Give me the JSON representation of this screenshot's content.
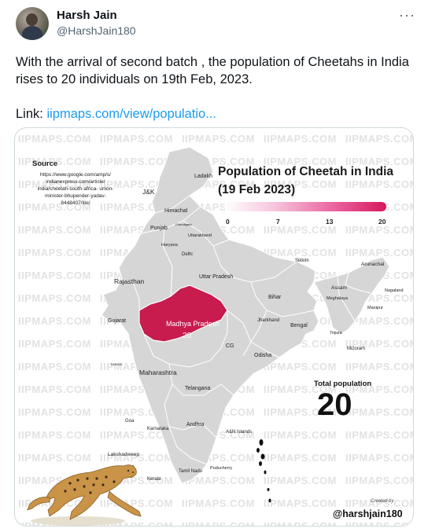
{
  "tweet": {
    "display_name": "Harsh Jain",
    "handle": "@HarshJain180",
    "more_icon": "more-horizontal-icon",
    "text_line1": "With the arrival of second batch , the population of Cheetahs in India",
    "text_line2": "rises to 20 individuals on 19th Feb, 2023.",
    "link_prefix": "Link: ",
    "link_text": "iipmaps.com/view/populatio..."
  },
  "media": {
    "watermark": "IIPMAPS.COM",
    "source_title": "Source",
    "source_url": "https://www.google.com/amp/s/ indianexpress.com/article/ india/cheetah-south-africa- union-minister-bhupender-yadav-8448407/lite/",
    "map_title": "Population of Cheetah in India (19 Feb 2023)",
    "legend_ticks": [
      "0",
      "7",
      "13",
      "20"
    ],
    "highlight_state": "Madhya Pradesh",
    "highlight_value": "20",
    "total_label": "Total population",
    "total_value": "20",
    "created_by": "Created by",
    "creator_handle": "@harshjain180",
    "colors": {
      "highlight": "#c81b4e",
      "land": "#d6d6d6",
      "border": "#ffffff",
      "legend_end": "#d6195c"
    },
    "state_labels": {
      "ladakh": "Ladakh",
      "jk": "J&K",
      "himachal": "Himachal",
      "punjab": "Punjab",
      "chandigarh": "Chandigarh",
      "uttarakhand": "Uttarakhand",
      "haryana": "Haryana",
      "delhi": "Delhi",
      "rajasthan": "Rajasthan",
      "uttar_pradesh": "Uttar Pradesh",
      "bihar": "Bihar",
      "sikkim": "Sikkim",
      "arunachal": "Arunachal",
      "assam": "Assam",
      "meghalaya": "Meghalaya",
      "nagaland": "Nagaland",
      "manipur": "Manipur",
      "tripura": "Tripura",
      "mizoram": "Mizoram",
      "jharkhand": "Jharkhand",
      "bengal": "Bengal",
      "gujarat": "Gujarat",
      "dnhdd": "DNHDD",
      "cg": "CG",
      "odisha": "Odisha",
      "maharashtra": "Maharashtra",
      "telangana": "Telangana",
      "goa": "Goa",
      "andhra": "Andhra",
      "karnataka": "Karnataka",
      "an_islands": "A&N Islands",
      "lakshadweep": "Lakshadweep",
      "tamil_nadu": "Tamil Nadu",
      "puducherry": "Puducherry",
      "kerala": "Kerala"
    }
  }
}
